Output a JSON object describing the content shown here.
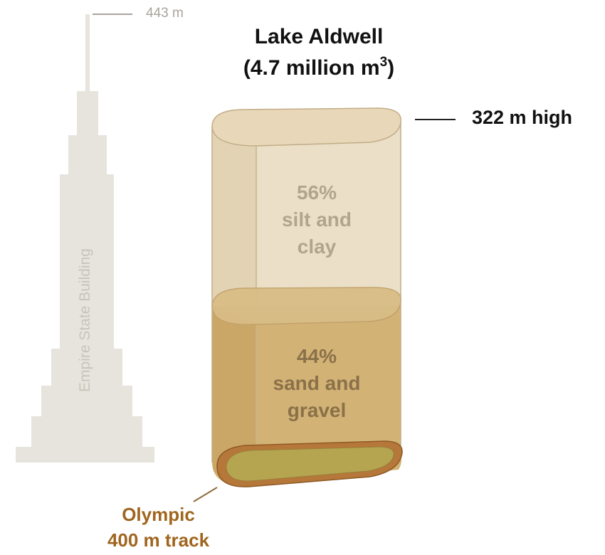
{
  "title": {
    "line1": "Lake Aldwell",
    "line2_prefix": "(4.7 million m",
    "line2_sup": "3",
    "line2_suffix": ")"
  },
  "height_label": "322 m high",
  "empire_state": {
    "name": "Empire State Building",
    "height_label": "443 m"
  },
  "layers": [
    {
      "percent": "56%",
      "line1": "silt and",
      "line2": "clay",
      "color": "#e2d3b7"
    },
    {
      "percent": "44%",
      "line1": "sand and",
      "line2": "gravel",
      "color": "#cfa968"
    }
  ],
  "track": {
    "line1": "Olympic",
    "line2": "400 m track",
    "color": "#a0651e"
  },
  "colors": {
    "building": "#e6e3dc",
    "cylinder_outline": "#b9a27e"
  }
}
